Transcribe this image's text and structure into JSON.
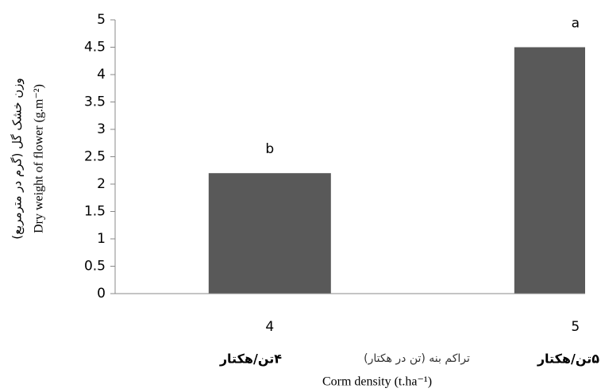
{
  "chart_data": {
    "type": "bar",
    "y_label_fa": "وزن خشک گل (گرم در مترمربع)",
    "y_label": "Dry weight of flower (g.m⁻²)",
    "x_label_fa": "تراکم بنه (تن در هکتار)",
    "x_label": "Corm density (t.ha⁻¹)",
    "categories": [
      "4",
      "5"
    ],
    "category_labels_fa": [
      "۴تن/هکتار",
      "۵تن/هکتار"
    ],
    "values": [
      2.2,
      4.5
    ],
    "annotations": [
      "b",
      "a"
    ],
    "color": "#595959",
    "ylim": [
      0,
      5
    ],
    "yticks": [
      0,
      0.5,
      1,
      1.5,
      2,
      2.5,
      3,
      3.5,
      4,
      4.5,
      5
    ]
  }
}
